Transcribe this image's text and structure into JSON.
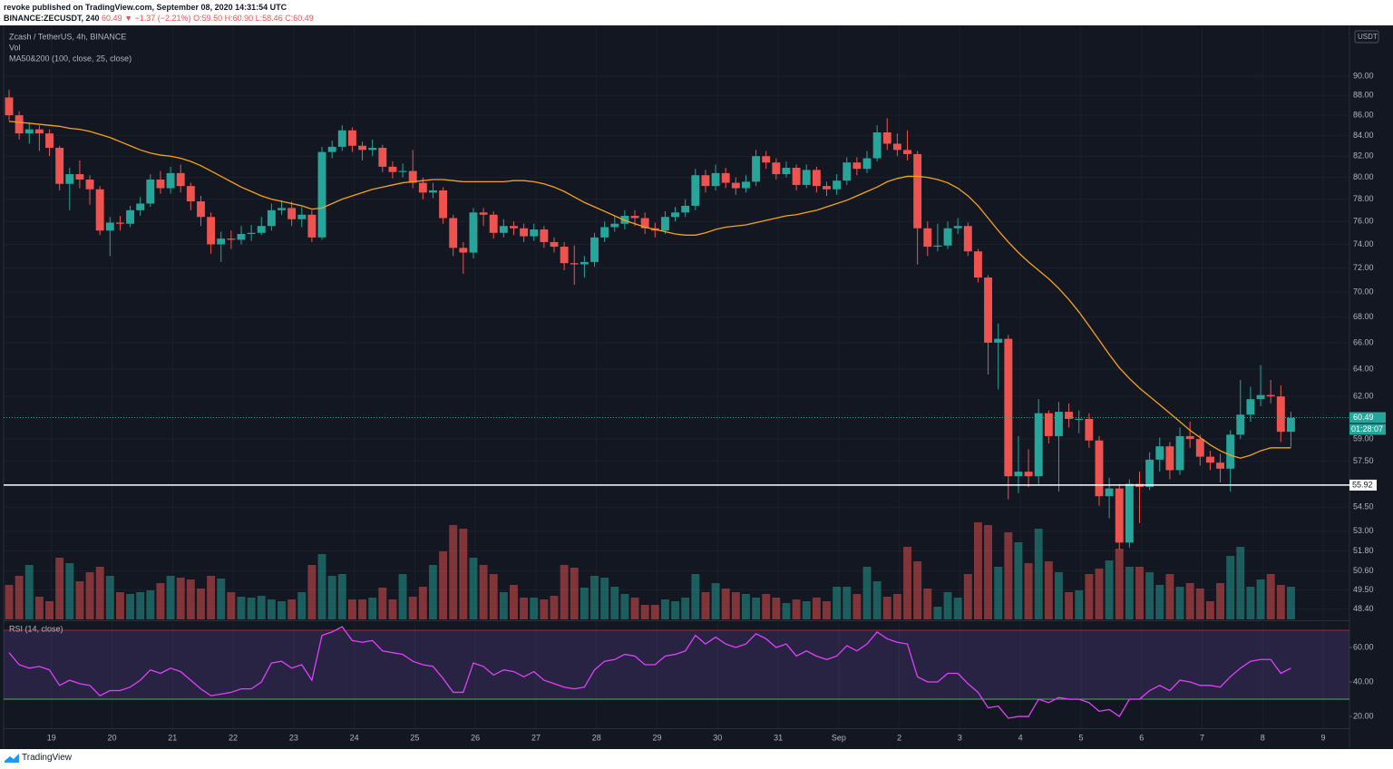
{
  "header": {
    "published": "revoke published on TradingView.com, September 08, 2020 14:31:54 UTC",
    "symbol": "BINANCE:ZECUSDT, 240",
    "last": "60.49",
    "change": "▼ −1.37 (−2.21%)",
    "ohlc": [
      "O:59.50",
      "H:60.90",
      "L:58.46",
      "C:60.49"
    ]
  },
  "footer": {
    "brand": "TradingView"
  },
  "chart_data": {
    "type": "candlestick",
    "legend": [
      "Zcash / TetherUS, 4h, BINANCE",
      "Vol",
      "MA50&200 (100, close, 25, close)"
    ],
    "currency": "USDT",
    "log": true,
    "up_color": "#26a69a",
    "down_color": "#ef5350",
    "ma_color": "#f7a21b",
    "xlim": [
      -0.54,
      132.8
    ],
    "xticks": [
      {
        "value": 4.2,
        "label": "19"
      },
      {
        "value": 10.2,
        "label": "20"
      },
      {
        "value": 16.2,
        "label": "21"
      },
      {
        "value": 22.2,
        "label": "22"
      },
      {
        "value": 28.2,
        "label": "23"
      },
      {
        "value": 34.2,
        "label": "24"
      },
      {
        "value": 40.2,
        "label": "25"
      },
      {
        "value": 46.2,
        "label": "26"
      },
      {
        "value": 52.2,
        "label": "27"
      },
      {
        "value": 58.2,
        "label": "28"
      },
      {
        "value": 64.2,
        "label": "29"
      },
      {
        "value": 70.2,
        "label": "30"
      },
      {
        "value": 76.2,
        "label": "31"
      },
      {
        "value": 82.2,
        "label": "Sep"
      },
      {
        "value": 88.2,
        "label": "2"
      },
      {
        "value": 94.2,
        "label": "3"
      },
      {
        "value": 100.2,
        "label": "4"
      },
      {
        "value": 106.2,
        "label": "5"
      },
      {
        "value": 112.2,
        "label": "6"
      },
      {
        "value": 118.2,
        "label": "7"
      },
      {
        "value": 124.2,
        "label": "8"
      },
      {
        "value": 130.2,
        "label": "9"
      }
    ],
    "ylim": [
      47.83,
      95.28
    ],
    "yticks": [
      {
        "value": 90,
        "label": "90.00"
      },
      {
        "value": 88,
        "label": "88.00"
      },
      {
        "value": 86,
        "label": "86.00"
      },
      {
        "value": 84,
        "label": "84.00"
      },
      {
        "value": 82,
        "label": "82.00"
      },
      {
        "value": 80,
        "label": "80.00"
      },
      {
        "value": 78,
        "label": "78.00"
      },
      {
        "value": 76,
        "label": "76.00"
      },
      {
        "value": 74,
        "label": "74.00"
      },
      {
        "value": 72,
        "label": "72.00"
      },
      {
        "value": 70,
        "label": "70.00"
      },
      {
        "value": 68,
        "label": "68.00"
      },
      {
        "value": 66,
        "label": "66.00"
      },
      {
        "value": 64,
        "label": "64.00"
      },
      {
        "value": 62,
        "label": "62.00"
      },
      {
        "value": 59,
        "label": "59.00"
      },
      {
        "value": 57.5,
        "label": "57.50"
      },
      {
        "value": 54.5,
        "label": "54.50"
      },
      {
        "value": 53,
        "label": "53.00"
      },
      {
        "value": 51.8,
        "label": "51.80"
      },
      {
        "value": 50.6,
        "label": "50.60"
      },
      {
        "value": 49.5,
        "label": "49.50"
      },
      {
        "value": 48.4,
        "label": "48.40"
      }
    ],
    "price_line": {
      "value": 60.49,
      "label": "60.49"
    },
    "countdown": "01:28:07",
    "level_line": {
      "value": 55.92,
      "label": "55.92"
    },
    "open": [
      87.8,
      86.0,
      84.2,
      84.6,
      84.2,
      82.8,
      79.4,
      80.3,
      79.8,
      78.9,
      75.2,
      75.9,
      75.8,
      77.0,
      77.6,
      79.8,
      79.0,
      80.4,
      79.2,
      77.8,
      76.4,
      74.0,
      74.5,
      74.4,
      74.9,
      75.0,
      75.6,
      77.0,
      77.2,
      76.2,
      76.6,
      74.6,
      82.4,
      82.9,
      84.5,
      83.0,
      82.6,
      82.8,
      81.0,
      80.5,
      80.6,
      79.5,
      78.6,
      78.8,
      76.3,
      73.7,
      73.3,
      76.8,
      76.6,
      75.0,
      75.6,
      75.4,
      74.7,
      75.3,
      74.2,
      73.8,
      72.4,
      72.3,
      72.5,
      74.6,
      75.5,
      75.8,
      76.5,
      76.3,
      75.4,
      75.2,
      76.4,
      76.8,
      77.4,
      80.2,
      79.2,
      80.4,
      79.5,
      79.0,
      79.6,
      82.0,
      81.4,
      80.3,
      80.9,
      79.3,
      80.7,
      79.2,
      78.9,
      79.7,
      81.4,
      80.8,
      81.8,
      84.3,
      83.2,
      82.6,
      82.2,
      75.4,
      73.8,
      73.9,
      75.4,
      75.6,
      73.4,
      71.2,
      66.0,
      66.3,
      56.5,
      56.8,
      56.5,
      60.8,
      59.2,
      60.9,
      60.4,
      60.4,
      58.9,
      55.2,
      55.7,
      52.3,
      56.0,
      55.8,
      57.6,
      58.5,
      56.9,
      59.2,
      59.0,
      57.8,
      57.4,
      57.0,
      59.3,
      60.7,
      61.8,
      62.1,
      62.0,
      59.5
    ],
    "high": [
      88.6,
      86.4,
      85.3,
      85.0,
      84.6,
      83.0,
      80.9,
      81.6,
      80.2,
      79.2,
      76.4,
      76.5,
      77.4,
      78.2,
      80.3,
      80.6,
      81.0,
      81.2,
      79.5,
      78.3,
      76.8,
      75.1,
      75.2,
      75.6,
      75.7,
      76.4,
      77.6,
      77.9,
      77.8,
      77.3,
      77.0,
      82.9,
      83.5,
      85.0,
      84.8,
      83.4,
      83.6,
      83.1,
      81.5,
      81.3,
      82.6,
      80.0,
      79.5,
      79.1,
      76.6,
      74.2,
      77.2,
      77.2,
      76.9,
      76.2,
      76.0,
      75.8,
      75.8,
      75.6,
      74.6,
      74.2,
      73.9,
      73.0,
      75.0,
      76.0,
      76.5,
      77.0,
      77.0,
      76.8,
      75.9,
      76.9,
      77.3,
      78.0,
      80.8,
      80.7,
      81.2,
      80.9,
      80.0,
      80.2,
      82.6,
      82.5,
      81.8,
      81.5,
      81.2,
      81.2,
      81.0,
      79.6,
      80.3,
      81.9,
      81.9,
      82.5,
      85.0,
      85.7,
      84.2,
      84.5,
      82.5,
      76.0,
      75.8,
      76.0,
      76.3,
      75.9,
      73.6,
      71.4,
      67.5,
      66.6,
      59.2,
      58.3,
      61.8,
      61.0,
      61.6,
      61.5,
      61.0,
      60.8,
      59.2,
      56.4,
      56.0,
      56.3,
      56.8,
      58.1,
      59.1,
      58.8,
      59.8,
      60.2,
      59.3,
      58.2,
      58.0,
      59.6,
      63.2,
      62.7,
      64.3,
      63.2,
      62.8,
      60.9
    ],
    "low": [
      85.5,
      83.6,
      83.2,
      82.5,
      82.0,
      78.8,
      77.0,
      79.0,
      77.5,
      74.8,
      73.0,
      75.2,
      75.5,
      76.5,
      77.3,
      78.5,
      78.5,
      78.6,
      77.0,
      75.6,
      73.2,
      72.5,
      73.6,
      74.0,
      74.3,
      74.8,
      75.2,
      76.6,
      75.6,
      75.5,
      74.2,
      74.4,
      81.8,
      82.5,
      82.4,
      81.6,
      82.0,
      80.5,
      79.9,
      80.0,
      79.0,
      78.0,
      78.1,
      75.8,
      73.0,
      71.5,
      72.8,
      75.6,
      74.5,
      74.6,
      74.8,
      74.2,
      74.3,
      73.7,
      73.3,
      71.8,
      70.6,
      71.2,
      72.1,
      74.2,
      75.1,
      75.3,
      75.6,
      74.9,
      74.6,
      74.9,
      76.0,
      76.4,
      77.0,
      78.6,
      78.8,
      79.0,
      78.4,
      78.6,
      79.2,
      80.8,
      79.8,
      80.0,
      78.8,
      79.0,
      78.6,
      78.3,
      78.4,
      79.3,
      80.2,
      80.4,
      81.5,
      82.6,
      82.0,
      81.6,
      72.3,
      73.0,
      73.4,
      73.6,
      74.9,
      73.0,
      70.8,
      63.6,
      62.5,
      55.0,
      55.4,
      55.8,
      56.0,
      58.7,
      55.5,
      59.8,
      59.4,
      58.4,
      54.6,
      53.8,
      51.9,
      52.0,
      53.5,
      55.6,
      56.8,
      56.3,
      56.6,
      58.4,
      57.2,
      56.9,
      56.1,
      55.5,
      59.0,
      60.2,
      61.3,
      61.5,
      58.8,
      58.46
    ],
    "close": [
      86.0,
      84.2,
      84.6,
      84.2,
      82.8,
      79.4,
      80.3,
      79.8,
      78.9,
      75.2,
      75.9,
      75.8,
      77.0,
      77.6,
      79.8,
      79.0,
      80.4,
      79.2,
      77.8,
      76.4,
      74.0,
      74.5,
      74.4,
      74.9,
      75.0,
      75.6,
      77.0,
      77.2,
      76.2,
      76.6,
      74.6,
      82.4,
      82.9,
      84.5,
      83.0,
      82.6,
      82.8,
      81.0,
      80.5,
      80.6,
      79.5,
      78.6,
      78.8,
      76.3,
      73.7,
      73.3,
      76.8,
      76.6,
      75.0,
      75.6,
      75.4,
      74.7,
      75.3,
      74.2,
      73.8,
      72.4,
      72.3,
      72.5,
      74.6,
      75.5,
      75.8,
      76.5,
      76.3,
      75.4,
      75.2,
      76.4,
      76.8,
      77.4,
      80.2,
      79.2,
      80.4,
      79.5,
      79.0,
      79.6,
      82.0,
      81.4,
      80.3,
      80.9,
      79.3,
      80.7,
      79.2,
      78.9,
      79.7,
      81.4,
      80.8,
      81.8,
      84.3,
      83.2,
      82.6,
      82.2,
      75.4,
      73.8,
      73.9,
      75.4,
      75.6,
      73.4,
      71.2,
      66.0,
      66.3,
      56.5,
      56.8,
      56.5,
      60.8,
      59.2,
      60.9,
      60.4,
      60.4,
      58.9,
      55.2,
      55.7,
      52.3,
      56.0,
      55.8,
      57.6,
      58.5,
      56.9,
      59.2,
      59.0,
      57.8,
      57.4,
      57.0,
      59.3,
      60.7,
      61.8,
      62.1,
      62.0,
      59.5,
      60.49
    ],
    "volume_ylim": [
      0,
      110
    ],
    "volume": [
      38,
      48,
      60,
      25,
      20,
      68,
      62,
      42,
      52,
      58,
      48,
      30,
      28,
      30,
      32,
      40,
      48,
      46,
      44,
      34,
      48,
      45,
      30,
      25,
      24,
      26,
      22,
      20,
      22,
      30,
      60,
      72,
      48,
      50,
      22,
      22,
      24,
      35,
      22,
      50,
      25,
      36,
      60,
      75,
      104,
      100,
      68,
      60,
      50,
      30,
      38,
      24,
      24,
      22,
      26,
      60,
      57,
      35,
      48,
      46,
      36,
      28,
      24,
      16,
      16,
      22,
      20,
      24,
      50,
      30,
      40,
      34,
      30,
      28,
      24,
      28,
      24,
      18,
      22,
      20,
      24,
      20,
      36,
      36,
      28,
      58,
      42,
      25,
      28,
      80,
      64,
      34,
      14,
      30,
      24,
      50,
      107,
      104,
      58,
      96,
      85,
      62,
      100,
      64,
      52,
      30,
      32,
      50,
      56,
      65,
      78,
      58,
      58,
      52,
      38,
      50,
      36,
      40,
      34,
      20,
      40,
      70,
      80,
      36,
      44,
      50,
      38,
      36
    ],
    "ma": [
      85.4,
      85.3,
      85.2,
      85.1,
      85.0,
      84.9,
      84.7,
      84.6,
      84.4,
      84.1,
      83.8,
      83.4,
      83.0,
      82.6,
      82.3,
      82.1,
      82.0,
      81.8,
      81.5,
      81.1,
      80.6,
      80.1,
      79.6,
      79.1,
      78.7,
      78.3,
      78.0,
      77.8,
      77.6,
      77.4,
      77.1,
      77.2,
      77.6,
      78.0,
      78.3,
      78.6,
      78.9,
      79.1,
      79.3,
      79.5,
      79.6,
      79.7,
      79.8,
      79.8,
      79.7,
      79.6,
      79.6,
      79.6,
      79.6,
      79.6,
      79.7,
      79.7,
      79.6,
      79.4,
      79.1,
      78.7,
      78.2,
      77.7,
      77.3,
      76.9,
      76.5,
      76.1,
      75.8,
      75.5,
      75.3,
      75.1,
      74.9,
      74.8,
      74.8,
      75.0,
      75.3,
      75.5,
      75.6,
      75.7,
      75.9,
      76.1,
      76.3,
      76.5,
      76.6,
      76.8,
      77.0,
      77.3,
      77.6,
      77.9,
      78.3,
      78.7,
      79.1,
      79.6,
      79.9,
      80.1,
      80.1,
      80.0,
      79.8,
      79.5,
      79.0,
      78.3,
      77.4,
      76.3,
      75.2,
      74.2,
      73.3,
      72.5,
      71.8,
      71.1,
      70.3,
      69.4,
      68.4,
      67.3,
      66.2,
      65.1,
      64.1,
      63.3,
      62.6,
      62.0,
      61.4,
      60.8,
      60.2,
      59.6,
      59.1,
      58.6,
      58.2,
      57.9,
      57.7,
      57.9,
      58.2,
      58.4,
      58.4,
      58.4
    ],
    "rsi": {
      "title": "RSI (14, close)",
      "color": "#e040fb",
      "ylim": [
        13.2,
        74.7
      ],
      "yticks": [
        {
          "value": 60,
          "label": "60.00"
        },
        {
          "value": 40,
          "label": "40.00"
        },
        {
          "value": 20,
          "label": "20.00"
        }
      ],
      "bands": [
        70,
        30
      ],
      "values": [
        57,
        50,
        48,
        49,
        47,
        38,
        41,
        39,
        38,
        32,
        35,
        35,
        37,
        41,
        47,
        45,
        48,
        46,
        41,
        36,
        32,
        33,
        34,
        36,
        36,
        40,
        51,
        52,
        48,
        50,
        41,
        67,
        69,
        72,
        64,
        63,
        64,
        58,
        57,
        56,
        52,
        50,
        49,
        42,
        34,
        34,
        51,
        49,
        44,
        47,
        46,
        43,
        46,
        41,
        39,
        37,
        36,
        37,
        47,
        52,
        53,
        56,
        55,
        50,
        50,
        55,
        56,
        58,
        67,
        62,
        66,
        62,
        60,
        62,
        68,
        65,
        60,
        62,
        55,
        58,
        55,
        53,
        55,
        61,
        58,
        62,
        69,
        65,
        63,
        62,
        43,
        40,
        40,
        45,
        45,
        39,
        34,
        25,
        26,
        19,
        20,
        20,
        30,
        28,
        31,
        30,
        30,
        28,
        23,
        24,
        20,
        30,
        30,
        35,
        38,
        35,
        41,
        40,
        38,
        38,
        37,
        43,
        48,
        52,
        53,
        53,
        45,
        48
      ]
    }
  }
}
